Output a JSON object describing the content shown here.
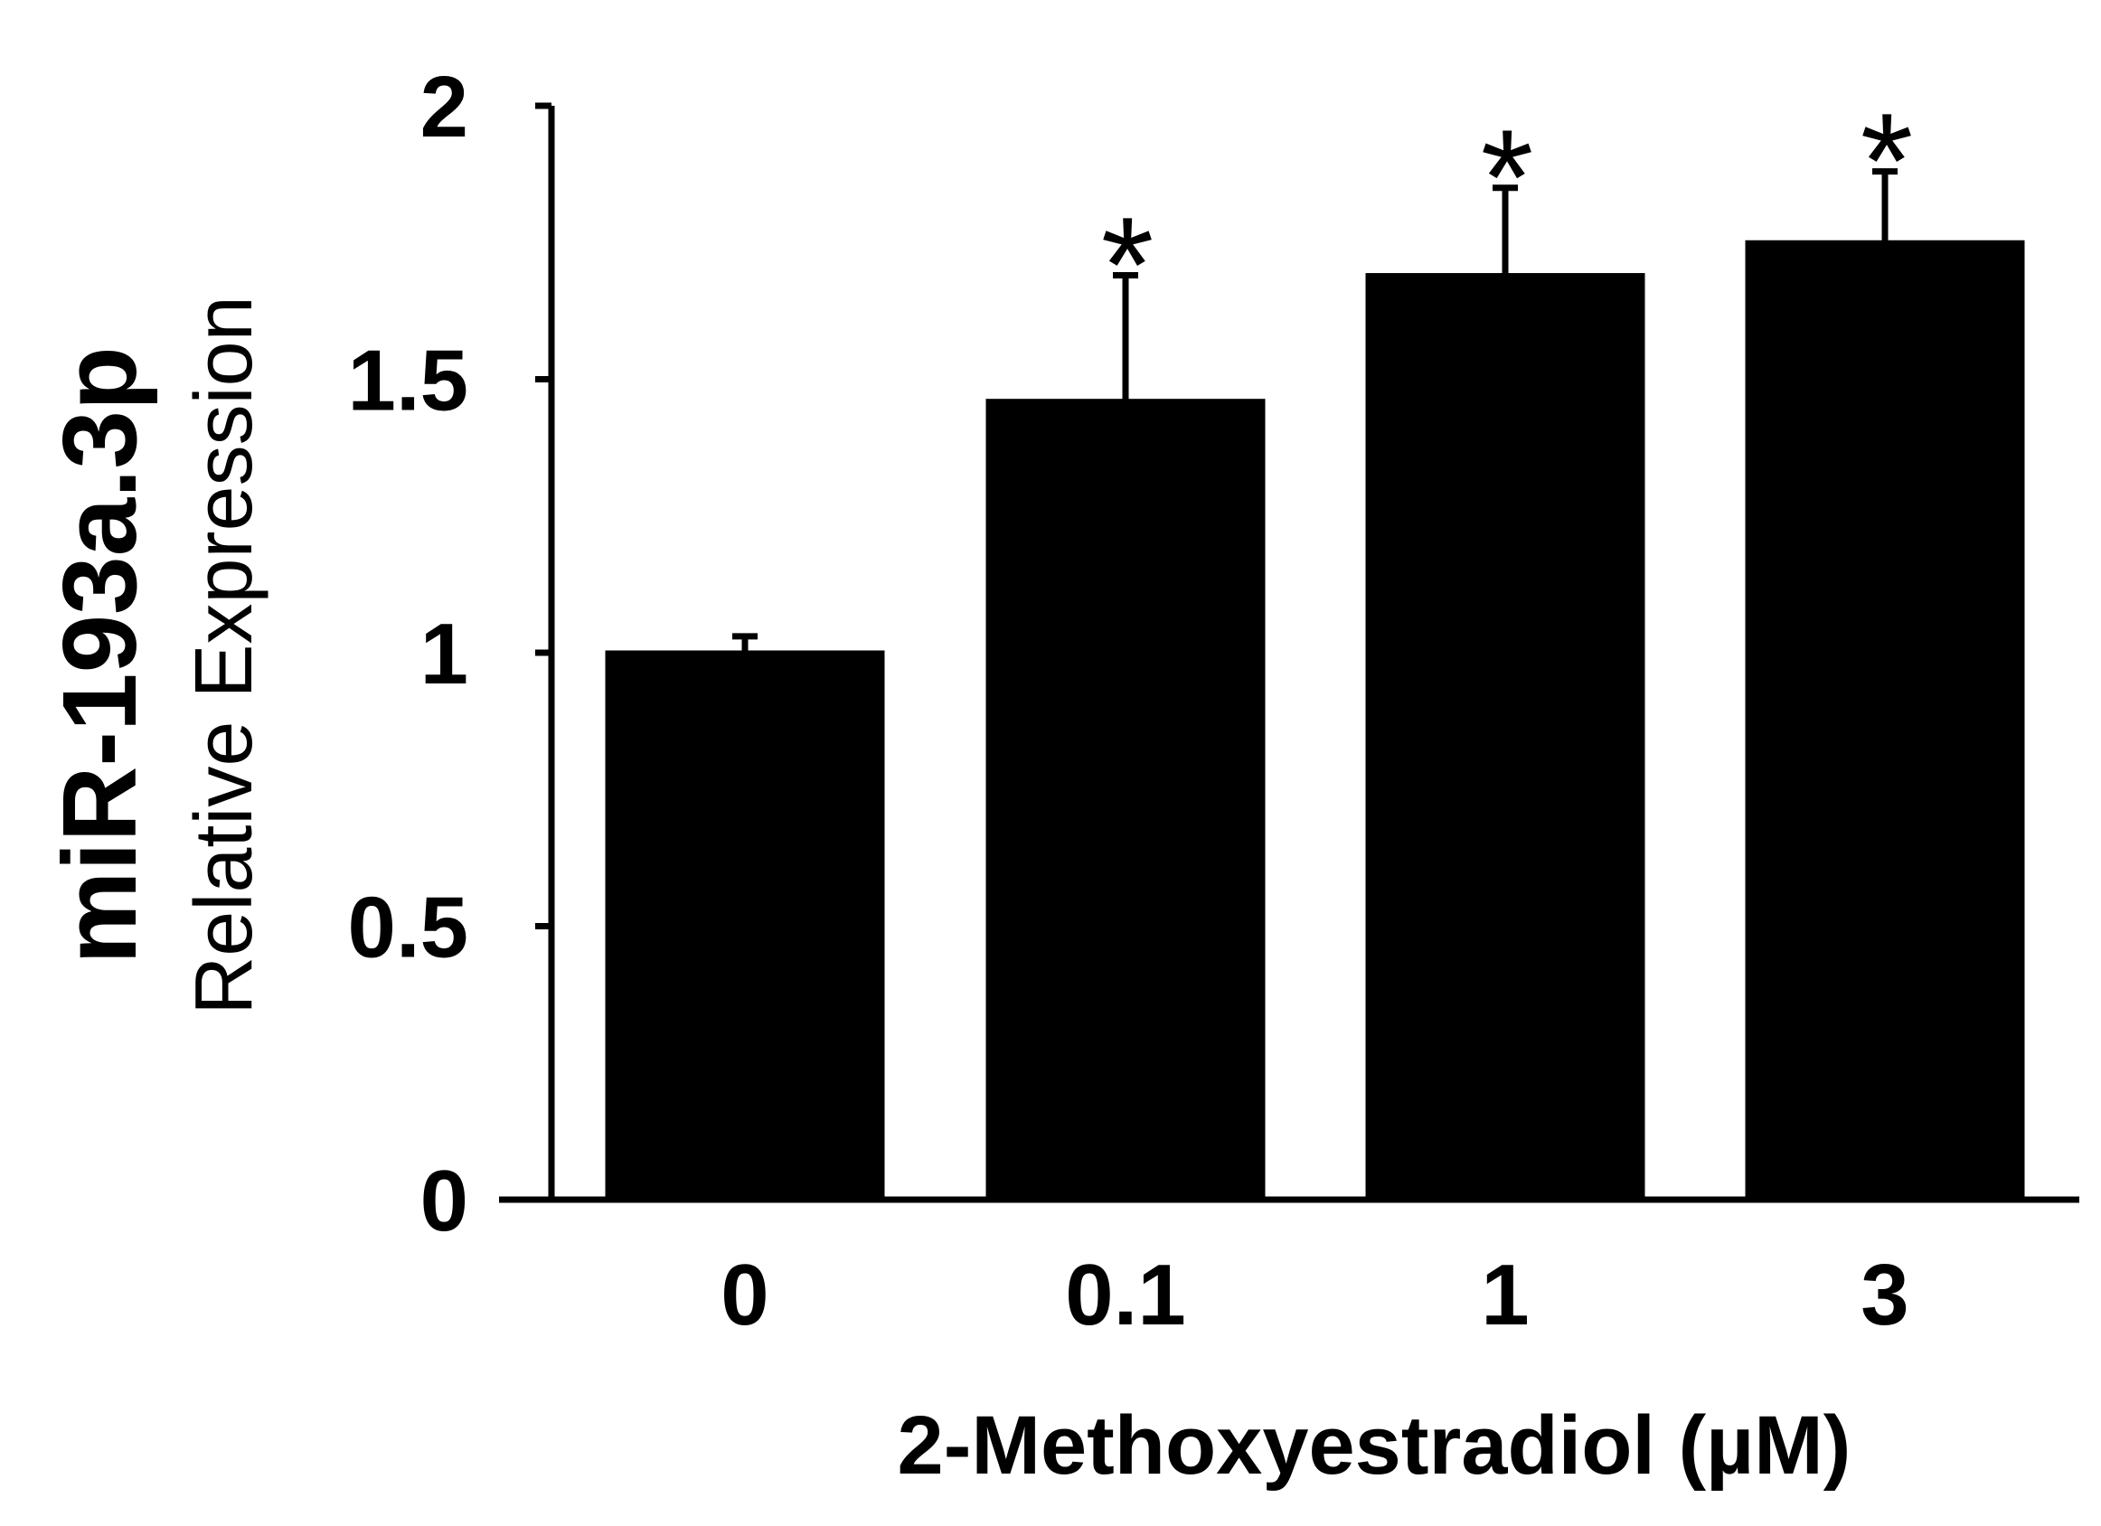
{
  "chart_data": {
    "type": "bar",
    "categories": [
      "0",
      "0.1",
      "1",
      "3"
    ],
    "values": [
      1.0,
      1.46,
      1.69,
      1.75
    ],
    "errors": [
      0.03,
      0.23,
      0.16,
      0.13
    ],
    "significance": [
      "",
      "*",
      "*",
      "*"
    ],
    "ylabel_main": "miR-193a.3p",
    "ylabel_sub": "Relative Expression",
    "xlabel": "2-Methoxyestradiol (µM)",
    "ylim": [
      0,
      2
    ],
    "yticks": [
      "0",
      "0.5",
      "1",
      "1.5",
      "2"
    ],
    "bar_color": "#000000",
    "grid": false,
    "legend": "none"
  }
}
